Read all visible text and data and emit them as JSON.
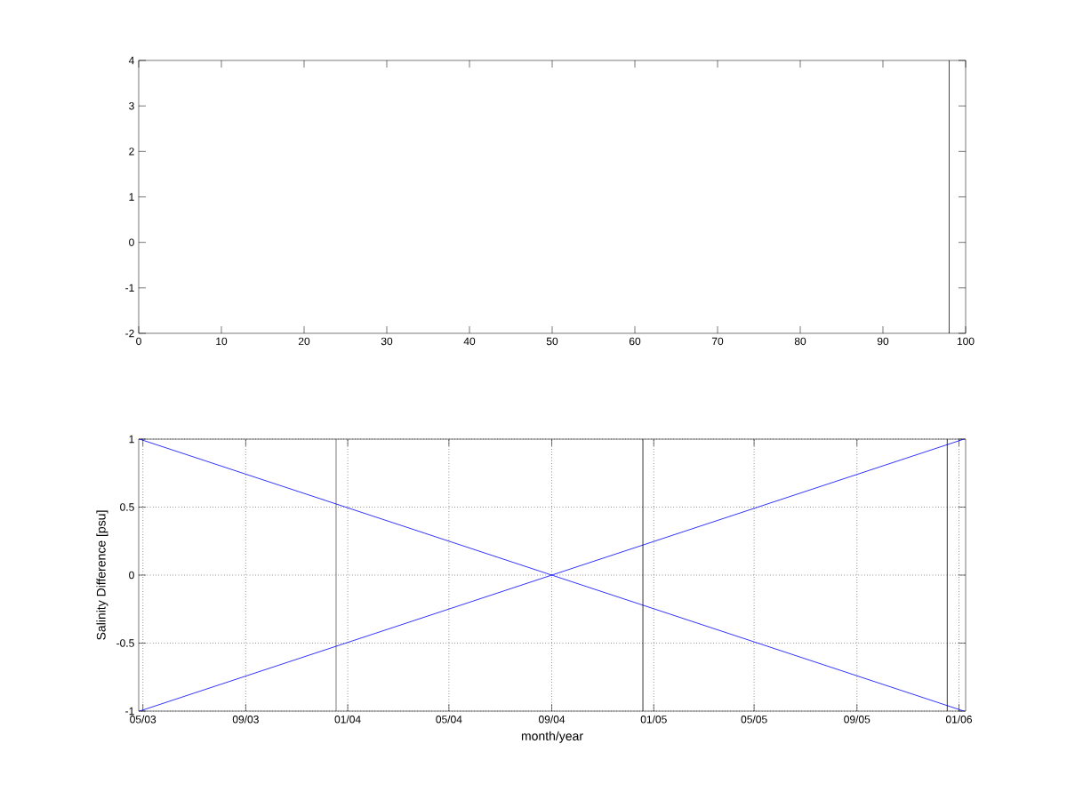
{
  "chart_data": [
    {
      "type": "line",
      "xlim": [
        0,
        100
      ],
      "ylim": [
        -2,
        4
      ],
      "xticks": [
        0,
        10,
        20,
        30,
        40,
        50,
        60,
        70,
        80,
        90,
        100
      ],
      "yticks": [
        -2,
        -1,
        0,
        1,
        2,
        3,
        4
      ],
      "ref_lines": [
        {
          "axis": "x",
          "value": 98,
          "color": "#000000"
        }
      ]
    },
    {
      "type": "line",
      "xlabel": "month/year",
      "ylabel": "Salinity Difference [psu]",
      "xlim": [
        "2003-04-26",
        "2006-01-09"
      ],
      "ylim": [
        -1,
        1
      ],
      "grid": true,
      "xticks": [
        {
          "value": "2003-05-01",
          "label": "05/03"
        },
        {
          "value": "2003-09-01",
          "label": "09/03"
        },
        {
          "value": "2004-01-01",
          "label": "01/04"
        },
        {
          "value": "2004-05-01",
          "label": "05/04"
        },
        {
          "value": "2004-09-01",
          "label": "09/04"
        },
        {
          "value": "2005-01-01",
          "label": "01/05"
        },
        {
          "value": "2005-05-01",
          "label": "05/05"
        },
        {
          "value": "2005-09-01",
          "label": "09/05"
        },
        {
          "value": "2006-01-01",
          "label": "01/06"
        }
      ],
      "yticks": [
        -1,
        -0.5,
        0,
        0.5,
        1
      ],
      "x": [
        "2003-04-27",
        "2006-01-07"
      ],
      "series": [
        {
          "color": "#0000ff",
          "values": [
            1,
            -1
          ]
        },
        {
          "color": "#0000ff",
          "values": [
            -1,
            1
          ]
        }
      ],
      "ref_lines": [
        {
          "axis": "x",
          "value": "2003-12-18",
          "color": "#000000"
        },
        {
          "axis": "x",
          "value": "2004-12-19",
          "color": "#000000"
        },
        {
          "axis": "x",
          "value": "2005-12-18",
          "color": "#000000"
        }
      ]
    }
  ]
}
